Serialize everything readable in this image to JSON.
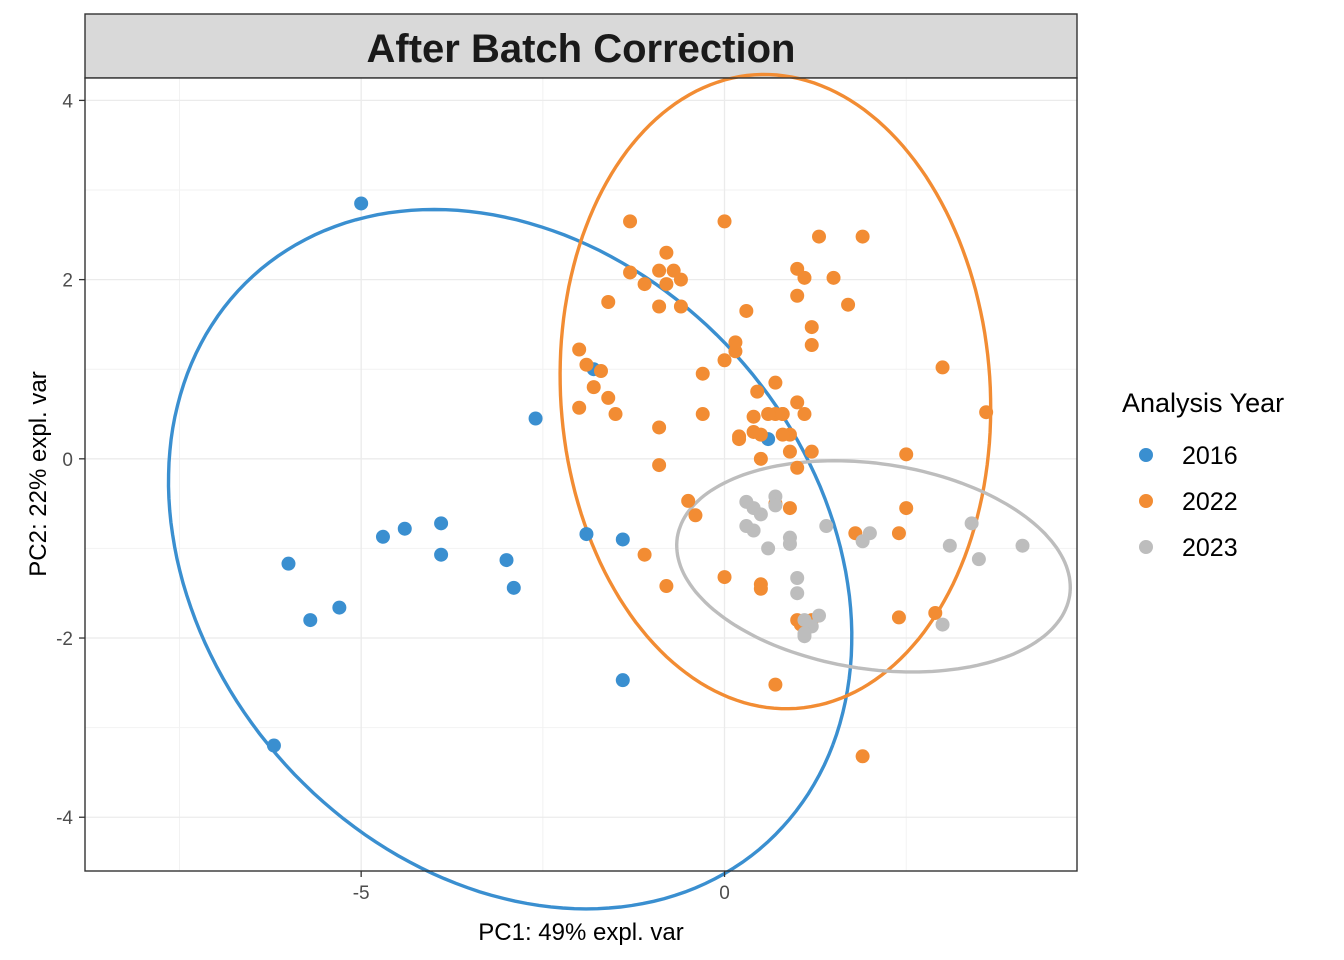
{
  "chart_data": {
    "type": "scatter",
    "title": "After Batch Correction",
    "xlabel": "PC1: 49% expl. var",
    "ylabel": "PC2: 22% expl. var",
    "xlim": [
      -8.8,
      4.85
    ],
    "ylim": [
      -4.6,
      4.25
    ],
    "x_ticks": [
      -5,
      0
    ],
    "y_ticks": [
      4,
      2,
      0,
      -2,
      -4
    ],
    "x_tick_labels": [
      "-5",
      "0"
    ],
    "y_tick_labels": [
      "4",
      "2",
      "0",
      "-2",
      "-4"
    ],
    "grid": true,
    "legend": {
      "title": "Analysis Year",
      "position": "right"
    },
    "series": [
      {
        "name": "2016",
        "color": "#3A8FD0",
        "x": [
          -5.0,
          -2.6,
          0.6,
          -6.0,
          -5.7,
          -5.3,
          -4.7,
          -4.4,
          -3.9,
          -3.9,
          -3.0,
          -2.9,
          -1.9,
          -1.4,
          -6.2,
          -1.4,
          -1.8
        ],
        "y": [
          2.85,
          0.45,
          0.22,
          -1.17,
          -1.8,
          -1.66,
          -0.87,
          -0.78,
          -0.72,
          -1.07,
          -1.13,
          -1.44,
          -0.84,
          -0.9,
          -3.2,
          -2.47,
          1.0
        ],
        "ellipse": {
          "cx": -2.95,
          "cy": -1.12,
          "rx": 4.9,
          "ry": 3.65,
          "angle_deg": -25
        }
      },
      {
        "name": "2022",
        "color": "#F28C33",
        "x": [
          -1.3,
          -0.0,
          -1.1,
          -0.9,
          -0.8,
          -0.7,
          -0.8,
          -0.6,
          -0.6,
          -1.6,
          -2.0,
          -1.9,
          -1.8,
          -1.7,
          -2.0,
          -1.6,
          -1.5,
          -0.9,
          -0.9,
          -0.3,
          0.0,
          0.15,
          0.15,
          0.3,
          0.45,
          0.7,
          0.7,
          0.6,
          0.8,
          0.5,
          0.4,
          1.0,
          1.1,
          1.3,
          1.2,
          1.2,
          1.7,
          1.9,
          1.0,
          1.0,
          0.9,
          1.1,
          0.8,
          0.9,
          1.2,
          1.5,
          2.5,
          3.0,
          3.6,
          -0.3,
          -0.5,
          -0.4,
          0.0,
          0.5,
          0.5,
          1.0,
          1.05,
          1.2,
          -1.1,
          -0.8,
          0.9,
          1.8,
          2.4,
          2.5,
          2.4,
          2.9,
          0.7,
          1.9,
          -1.3,
          0.8,
          -0.9,
          0.4,
          0.2,
          0.2,
          1.0,
          0.5,
          0.7
        ],
        "y": [
          2.65,
          2.65,
          1.95,
          2.1,
          2.3,
          2.1,
          1.95,
          2.0,
          1.7,
          1.75,
          1.22,
          1.05,
          0.8,
          0.98,
          0.57,
          0.68,
          0.5,
          0.35,
          -0.07,
          0.95,
          1.1,
          1.2,
          1.3,
          1.65,
          0.75,
          0.85,
          0.5,
          0.5,
          0.5,
          0.27,
          0.47,
          2.12,
          2.02,
          2.48,
          1.47,
          1.27,
          1.72,
          2.48,
          1.82,
          0.63,
          0.27,
          0.5,
          0.27,
          0.08,
          0.08,
          2.02,
          0.05,
          1.02,
          0.52,
          0.5,
          -0.47,
          -0.63,
          -1.32,
          -1.45,
          -1.4,
          -1.8,
          -1.85,
          -1.8,
          -1.07,
          -1.42,
          -0.55,
          -0.83,
          -0.83,
          -0.55,
          -1.77,
          -1.72,
          -2.52,
          -3.32,
          2.08,
          0.5,
          1.7,
          0.3,
          0.25,
          0.22,
          -0.1,
          0.0,
          -0.5
        ],
        "ellipse": {
          "cx": 0.7,
          "cy": 0.75,
          "rx": 2.95,
          "ry": 3.55,
          "angle_deg": 8
        }
      },
      {
        "name": "2023",
        "color": "#BDBDBD",
        "x": [
          0.3,
          0.4,
          0.5,
          0.3,
          0.4,
          0.7,
          0.7,
          0.6,
          0.9,
          0.9,
          1.0,
          1.0,
          1.1,
          1.1,
          1.3,
          1.4,
          1.2,
          1.1,
          1.9,
          2.0,
          3.1,
          3.4,
          3.5,
          4.1,
          3.0
        ],
        "y": [
          -0.48,
          -0.55,
          -0.62,
          -0.75,
          -0.8,
          -0.42,
          -0.52,
          -1.0,
          -0.88,
          -0.95,
          -1.33,
          -1.5,
          -1.8,
          -1.98,
          -1.75,
          -0.75,
          -1.87,
          -1.95,
          -0.92,
          -0.83,
          -0.97,
          -0.72,
          -1.12,
          -0.97,
          -1.85
        ],
        "ellipse": {
          "cx": 2.05,
          "cy": -1.2,
          "rx": 2.72,
          "ry": 1.15,
          "angle_deg": -6
        }
      }
    ]
  }
}
